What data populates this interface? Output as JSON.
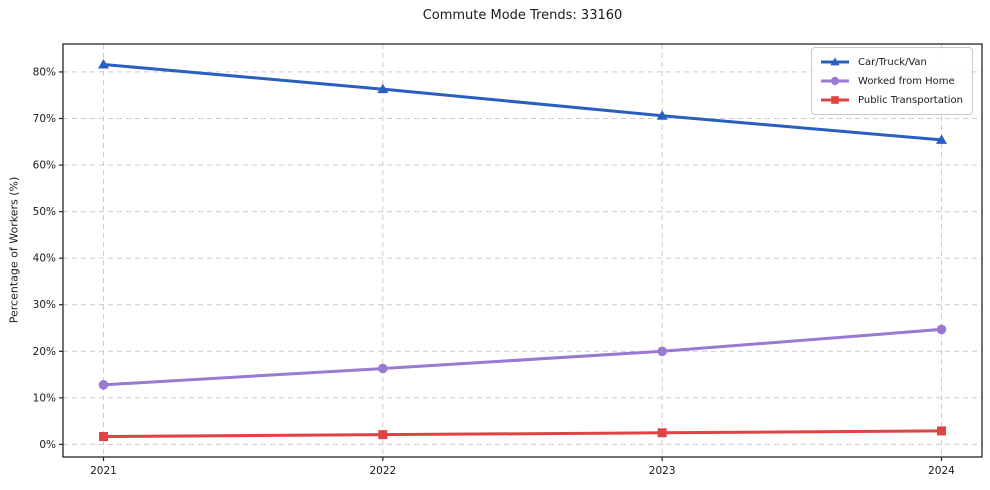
{
  "title": "Commute Mode Trends: 33160",
  "palette": {
    "background": "#ffffff",
    "grid": "#cccccc",
    "axis": "#262626",
    "text": "#1a1a1a",
    "car_blue": "#2a5fc0",
    "home_purple": "#9a79d3",
    "transit_red": "#e04343"
  },
  "chart_data": {
    "type": "line",
    "title": "Commute Mode Trends: 33160",
    "xlabel": "",
    "ylabel": "Percentage of Workers (%)",
    "x": [
      2021,
      2022,
      2023,
      2024
    ],
    "xtick_labels": [
      "2021",
      "2022",
      "2023",
      "2024"
    ],
    "yticks": [
      0,
      10,
      20,
      30,
      40,
      50,
      60,
      70,
      80
    ],
    "ytick_labels": [
      "0%",
      "10%",
      "20%",
      "30%",
      "40%",
      "50%",
      "60%",
      "70%",
      "80%"
    ],
    "ylim": [
      -2.7,
      86.0
    ],
    "grid": true,
    "legend_position": "upper right",
    "series": [
      {
        "name": "Car/Truck/Van",
        "values": [
          81.6,
          76.3,
          70.6,
          65.4
        ],
        "color": "#2a5fc0",
        "marker": "triangle"
      },
      {
        "name": "Worked from Home",
        "values": [
          12.8,
          16.3,
          20.0,
          24.7
        ],
        "color": "#9a79d3",
        "marker": "circle"
      },
      {
        "name": "Public Transportation",
        "values": [
          1.7,
          2.1,
          2.5,
          2.9
        ],
        "color": "#e04343",
        "marker": "square"
      }
    ]
  }
}
